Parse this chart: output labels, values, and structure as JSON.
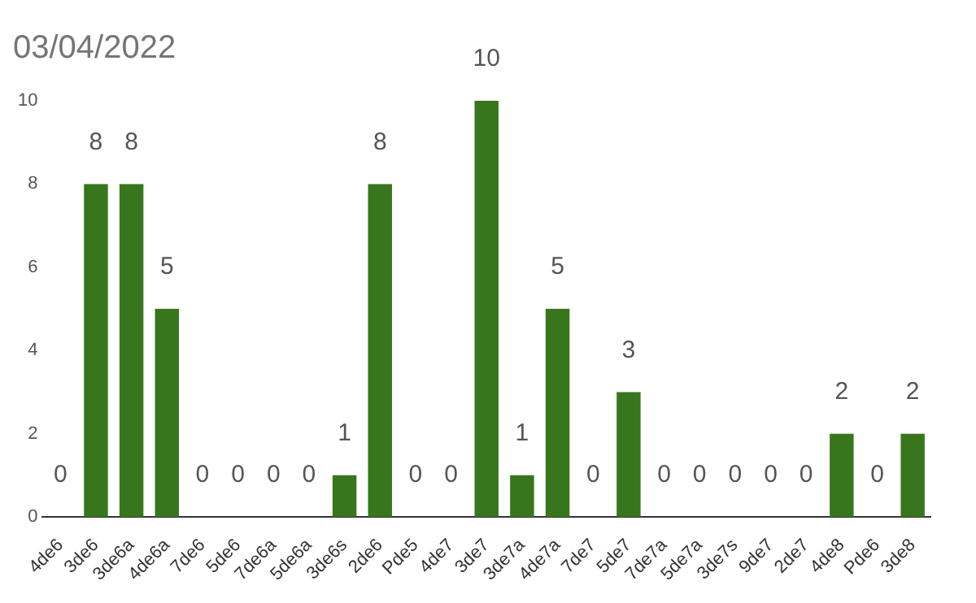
{
  "chart_data": {
    "type": "bar",
    "title": "03/04/2022",
    "categories": [
      "4de6",
      "3de6",
      "3de6a",
      "4de6a",
      "7de6",
      "5de6",
      "7de6a",
      "5de6a",
      "3de6s",
      "2de6",
      "Pde5",
      "4de7",
      "3de7",
      "3de7a",
      "4de7a",
      "7de7",
      "5de7",
      "7de7a",
      "5de7a",
      "3de7s",
      "9de7",
      "2de7",
      "4de8",
      "Pde6",
      "3de8"
    ],
    "values": [
      0,
      8,
      8,
      5,
      0,
      0,
      0,
      0,
      1,
      8,
      0,
      0,
      10,
      1,
      5,
      0,
      3,
      0,
      0,
      0,
      0,
      0,
      2,
      0,
      2
    ],
    "color": "#38761d",
    "ylim": [
      0,
      10
    ],
    "yticks": [
      0,
      2,
      4,
      6,
      8,
      10
    ],
    "data_labels": true
  }
}
